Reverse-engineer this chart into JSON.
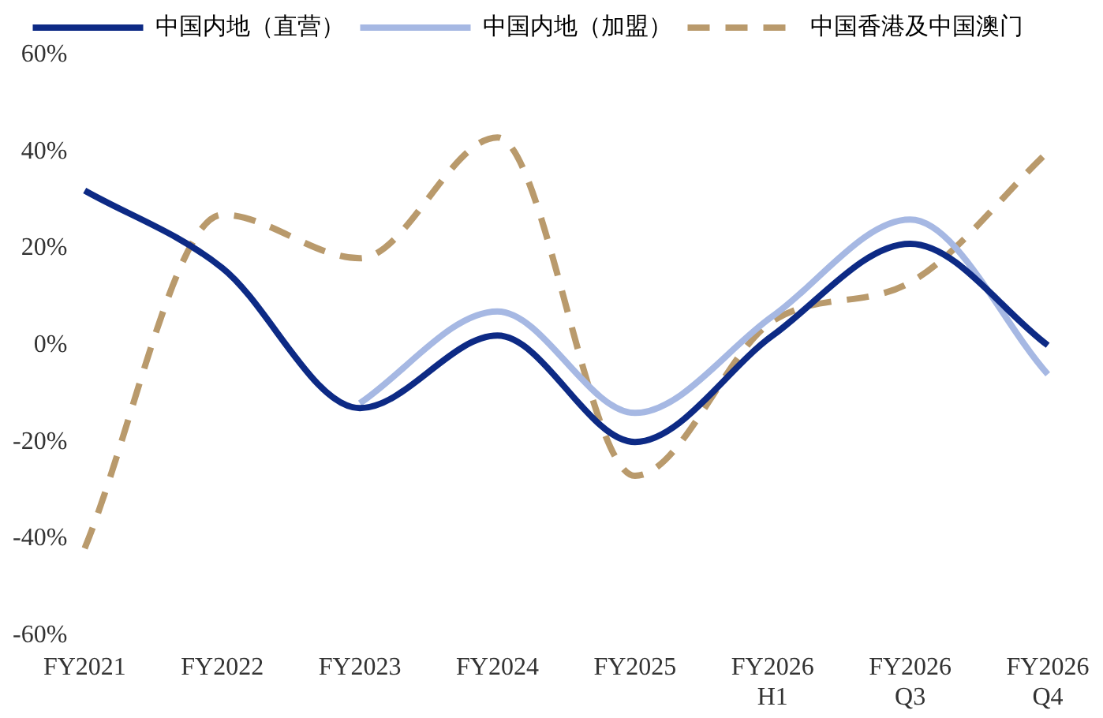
{
  "chart_data": {
    "type": "line",
    "categories": [
      "FY2021",
      "FY2022",
      "FY2023",
      "FY2024",
      "FY2025",
      "FY2026\nH1",
      "FY2026\nQ3",
      "FY2026\nQ4"
    ],
    "series": [
      {
        "name": "中国内地（直营）",
        "color": "#0d2a85",
        "values": [
          32,
          16,
          -13,
          2,
          -20,
          2,
          21,
          0
        ],
        "line_style": "solid"
      },
      {
        "name": "中国内地（加盟）",
        "color": "#a6b8e3",
        "values": [
          null,
          null,
          -12,
          7,
          -14,
          6,
          26,
          -6
        ],
        "line_style": "solid"
      },
      {
        "name": "中国香港及中国澳门",
        "color": "#b99a6c",
        "values": [
          -42,
          27,
          18,
          43,
          -27,
          5,
          13,
          40
        ],
        "line_style": "dashed"
      }
    ],
    "ylim": [
      -60,
      60
    ],
    "yticks": [
      {
        "value": -60,
        "label": "-60%"
      },
      {
        "value": -40,
        "label": "-40%"
      },
      {
        "value": -20,
        "label": "-20%"
      },
      {
        "value": 0,
        "label": "0%"
      },
      {
        "value": 20,
        "label": "20%"
      },
      {
        "value": 40,
        "label": "40%"
      },
      {
        "value": 60,
        "label": "60%"
      }
    ],
    "grid": false,
    "legend": "top",
    "marker": "none"
  }
}
